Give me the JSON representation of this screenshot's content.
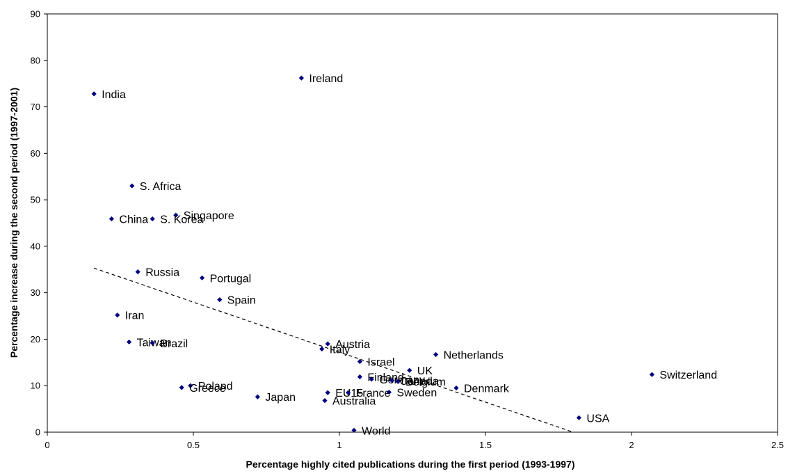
{
  "chart_data": {
    "type": "scatter",
    "title": "",
    "xlabel": "Percentage highly cited publications during the first period (1993-1997)",
    "ylabel": "Percentage increase  during  the second period (1997-2001)",
    "xlim": [
      0,
      2.5
    ],
    "ylim": [
      0,
      90
    ],
    "xticks": [
      0,
      0.5,
      1,
      1.5,
      2,
      2.5
    ],
    "xtick_labels": [
      "0",
      "0.5",
      "1",
      "1.5",
      "2",
      "2.5"
    ],
    "yticks": [
      0,
      10,
      20,
      30,
      40,
      50,
      60,
      70,
      80,
      90
    ],
    "ytick_labels": [
      "0",
      "10",
      "20",
      "30",
      "40",
      "50",
      "60",
      "70",
      "80",
      "90"
    ],
    "grid": false,
    "legend": "none",
    "marker_color": "#000080",
    "points": [
      {
        "label": "India",
        "x": 0.16,
        "y": 72.8
      },
      {
        "label": "Ireland",
        "x": 0.87,
        "y": 76.2
      },
      {
        "label": "S. Africa",
        "x": 0.29,
        "y": 53.0
      },
      {
        "label": "Singapore",
        "x": 0.44,
        "y": 46.7
      },
      {
        "label": "China",
        "x": 0.22,
        "y": 45.9
      },
      {
        "label": "S. Korea",
        "x": 0.36,
        "y": 45.9
      },
      {
        "label": "Russia",
        "x": 0.31,
        "y": 34.5
      },
      {
        "label": "Portugal",
        "x": 0.53,
        "y": 33.2
      },
      {
        "label": "Spain",
        "x": 0.59,
        "y": 28.5
      },
      {
        "label": "Iran",
        "x": 0.24,
        "y": 25.2
      },
      {
        "label": "Taiwan",
        "x": 0.28,
        "y": 19.4
      },
      {
        "label": "Brazil",
        "x": 0.36,
        "y": 19.2
      },
      {
        "label": "Austria",
        "x": 0.96,
        "y": 19.0
      },
      {
        "label": "Italy",
        "x": 0.94,
        "y": 17.9
      },
      {
        "label": "Netherlands",
        "x": 1.33,
        "y": 16.7
      },
      {
        "label": "Israel",
        "x": 1.07,
        "y": 15.2
      },
      {
        "label": "UK",
        "x": 1.24,
        "y": 13.3
      },
      {
        "label": "Switzerland",
        "x": 2.07,
        "y": 12.4
      },
      {
        "label": "Finland",
        "x": 1.07,
        "y": 11.9
      },
      {
        "label": "Germany",
        "x": 1.11,
        "y": 11.4
      },
      {
        "label": "Canada",
        "x": 1.18,
        "y": 11.1
      },
      {
        "label": "Belgium",
        "x": 1.2,
        "y": 10.9
      },
      {
        "label": "Poland",
        "x": 0.49,
        "y": 10.0
      },
      {
        "label": "Greece",
        "x": 0.46,
        "y": 9.6
      },
      {
        "label": "Denmark",
        "x": 1.4,
        "y": 9.5
      },
      {
        "label": "EU15",
        "x": 0.96,
        "y": 8.5
      },
      {
        "label": "France",
        "x": 1.03,
        "y": 8.5
      },
      {
        "label": "Sweden",
        "x": 1.17,
        "y": 8.6
      },
      {
        "label": "Japan",
        "x": 0.72,
        "y": 7.6
      },
      {
        "label": "Australia",
        "x": 0.95,
        "y": 6.8
      },
      {
        "label": "USA",
        "x": 1.82,
        "y": 3.1
      },
      {
        "label": "World",
        "x": 1.05,
        "y": 0.4
      }
    ],
    "trendline": {
      "style": "dashed",
      "color": "#000000",
      "x": [
        0.16,
        1.8
      ],
      "y": [
        35.3,
        0.0
      ]
    }
  }
}
